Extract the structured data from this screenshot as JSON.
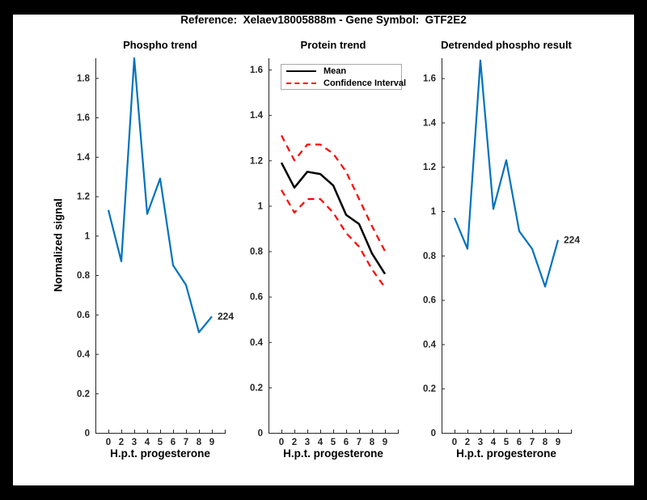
{
  "header": {
    "title": "Reference:  Xelaev18005888m - Gene Symbol:  GTF2E2"
  },
  "colors": {
    "blue": "#0072BD",
    "red": "#FF0000",
    "black": "#000000",
    "axis": "#262626",
    "frame_bg": "#000000",
    "figure_bg": "#FFFFFF"
  },
  "chart_data": [
    {
      "type": "line",
      "title": "Phospho trend",
      "xlabel": "H.p.t. progesterone",
      "ylabel": "Normalized signal",
      "x_tick_labels": [
        "0",
        "2",
        "3",
        "4",
        "5",
        "6",
        "7",
        "8",
        "9"
      ],
      "y_tick_labels": [
        "0",
        "0.2",
        "0.4",
        "0.6",
        "0.8",
        "1",
        "1.2",
        "1.4",
        "1.6",
        "1.8"
      ],
      "ylim": [
        0,
        1.9
      ],
      "grid": false,
      "series": [
        {
          "name": "224",
          "color": "#0072BD",
          "style": "solid",
          "width": 2.2,
          "values": [
            1.13,
            0.87,
            1.9,
            1.11,
            1.29,
            0.85,
            0.75,
            0.51,
            0.59
          ]
        }
      ],
      "end_label": "224"
    },
    {
      "type": "line",
      "title": "Protein trend",
      "xlabel": "H.p.t. progesterone",
      "ylabel": "",
      "x_tick_labels": [
        "0",
        "2",
        "3",
        "4",
        "5",
        "6",
        "7",
        "8",
        "9"
      ],
      "y_tick_labels": [
        "0",
        "0.2",
        "0.4",
        "0.6",
        "0.8",
        "1",
        "1.2",
        "1.4",
        "1.6"
      ],
      "ylim": [
        0,
        1.65
      ],
      "grid": false,
      "series": [
        {
          "name": "Mean",
          "color": "#000000",
          "style": "solid",
          "width": 2.5,
          "values": [
            1.19,
            1.08,
            1.15,
            1.14,
            1.09,
            0.96,
            0.92,
            0.79,
            0.7
          ]
        },
        {
          "name": "Confidence Interval upper",
          "color": "#FF0000",
          "style": "dashed",
          "width": 2.2,
          "values": [
            1.31,
            1.2,
            1.27,
            1.27,
            1.23,
            1.15,
            1.03,
            0.91,
            0.8
          ]
        },
        {
          "name": "Confidence Interval lower",
          "color": "#FF0000",
          "style": "dashed",
          "width": 2.2,
          "values": [
            1.07,
            0.97,
            1.03,
            1.03,
            0.97,
            0.88,
            0.82,
            0.72,
            0.64
          ]
        }
      ],
      "legend": {
        "position": "northwest",
        "entries": [
          {
            "label": "Mean",
            "style": "solid",
            "color": "#000000"
          },
          {
            "label": "Confidence Interval",
            "style": "dashed",
            "color": "#FF0000"
          }
        ]
      },
      "end_label": ""
    },
    {
      "type": "line",
      "title": "Detrended phospho result",
      "xlabel": "H.p.t. progesterone",
      "ylabel": "",
      "x_tick_labels": [
        "0",
        "2",
        "3",
        "4",
        "5",
        "6",
        "7",
        "8",
        "9"
      ],
      "y_tick_labels": [
        "0",
        "0.2",
        "0.4",
        "0.6",
        "0.8",
        "1",
        "1.2",
        "1.4",
        "1.6"
      ],
      "ylim": [
        0,
        1.69
      ],
      "grid": false,
      "series": [
        {
          "name": "224",
          "color": "#0072BD",
          "style": "solid",
          "width": 2.2,
          "values": [
            0.97,
            0.83,
            1.68,
            1.01,
            1.23,
            0.91,
            0.83,
            0.66,
            0.87
          ]
        }
      ],
      "end_label": "224"
    }
  ]
}
